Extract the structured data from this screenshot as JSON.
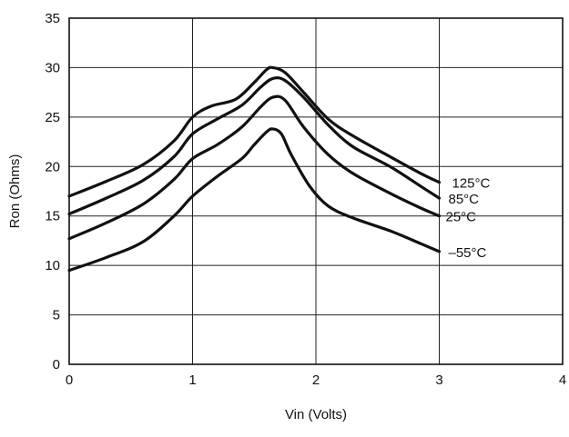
{
  "chart_data": {
    "type": "line",
    "xlabel": "Vin (Volts)",
    "ylabel": "Ron (Ohms)",
    "xlim": [
      0,
      4
    ],
    "ylim": [
      0,
      35
    ],
    "x_ticks": [
      "0",
      "1",
      "2",
      "3",
      "4"
    ],
    "y_ticks": [
      "0",
      "5",
      "10",
      "15",
      "20",
      "25",
      "30",
      "35"
    ],
    "grid": true,
    "colors": {
      "line": "#111111",
      "grid": "#222222",
      "background": "#ffffff"
    },
    "series": [
      {
        "name": "125°C",
        "x": [
          0,
          0.3,
          0.6,
          0.85,
          1.0,
          1.15,
          1.35,
          1.5,
          1.6,
          1.65,
          1.75,
          1.9,
          2.1,
          2.3,
          2.6,
          2.85,
          3.0
        ],
        "y": [
          17.0,
          18.5,
          20.2,
          22.6,
          25.0,
          26.1,
          26.8,
          28.5,
          29.8,
          30.0,
          29.5,
          27.5,
          24.8,
          23.1,
          21.0,
          19.3,
          18.4
        ]
      },
      {
        "name": "85°C",
        "x": [
          0,
          0.3,
          0.6,
          0.85,
          1.0,
          1.2,
          1.4,
          1.55,
          1.65,
          1.75,
          1.9,
          2.1,
          2.3,
          2.6,
          2.85,
          3.0
        ],
        "y": [
          15.2,
          16.8,
          18.6,
          21.0,
          23.3,
          24.8,
          26.2,
          28.0,
          28.9,
          28.7,
          27.0,
          24.2,
          22.0,
          20.0,
          18.0,
          16.8
        ]
      },
      {
        "name": "25°C",
        "x": [
          0,
          0.3,
          0.6,
          0.85,
          1.0,
          1.2,
          1.4,
          1.55,
          1.65,
          1.75,
          1.9,
          2.1,
          2.3,
          2.6,
          2.85,
          3.0
        ],
        "y": [
          12.7,
          14.3,
          16.2,
          18.7,
          20.8,
          22.2,
          24.0,
          26.0,
          27.0,
          26.7,
          24.0,
          21.2,
          19.3,
          17.3,
          15.8,
          15.0
        ]
      },
      {
        "name": "–55°C",
        "x": [
          0,
          0.3,
          0.6,
          0.85,
          1.0,
          1.2,
          1.4,
          1.5,
          1.6,
          1.65,
          1.72,
          1.8,
          1.95,
          2.1,
          2.3,
          2.6,
          2.85,
          3.0
        ],
        "y": [
          9.5,
          10.8,
          12.4,
          15.0,
          17.0,
          19.0,
          20.8,
          22.2,
          23.5,
          23.8,
          23.3,
          21.2,
          18.0,
          16.0,
          14.8,
          13.5,
          12.2,
          11.4
        ]
      }
    ]
  }
}
